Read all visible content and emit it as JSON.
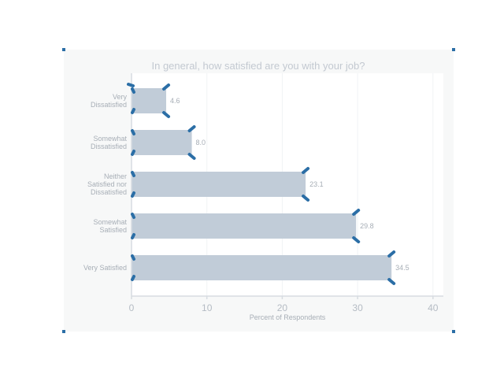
{
  "chart_data": {
    "type": "bar",
    "orientation": "horizontal",
    "title": "In general, how satisfied are you with your job?",
    "xlabel": "Percent of Respondents",
    "ylabel": "",
    "categories": [
      [
        "Very",
        "Dissatisfied"
      ],
      [
        "Somewhat",
        "Dissatisfied"
      ],
      [
        "Neither",
        "Satisfied nor",
        "Dissatisfied"
      ],
      [
        "Somewhat",
        "Satisfied"
      ],
      [
        "Very Satisfied"
      ]
    ],
    "values": [
      4.6,
      8.0,
      23.1,
      29.8,
      34.5
    ],
    "value_labels": [
      "4.6",
      "8.0",
      "23.1",
      "29.8",
      "34.5"
    ],
    "xlim": [
      0,
      41
    ],
    "xticks": [
      0,
      10,
      20,
      30,
      40
    ],
    "xtick_labels": [
      "0",
      "10",
      "20",
      "30",
      "40"
    ],
    "grid": true,
    "bar_color": "#c1ccd8",
    "handle_color": "#2b6ea6"
  }
}
